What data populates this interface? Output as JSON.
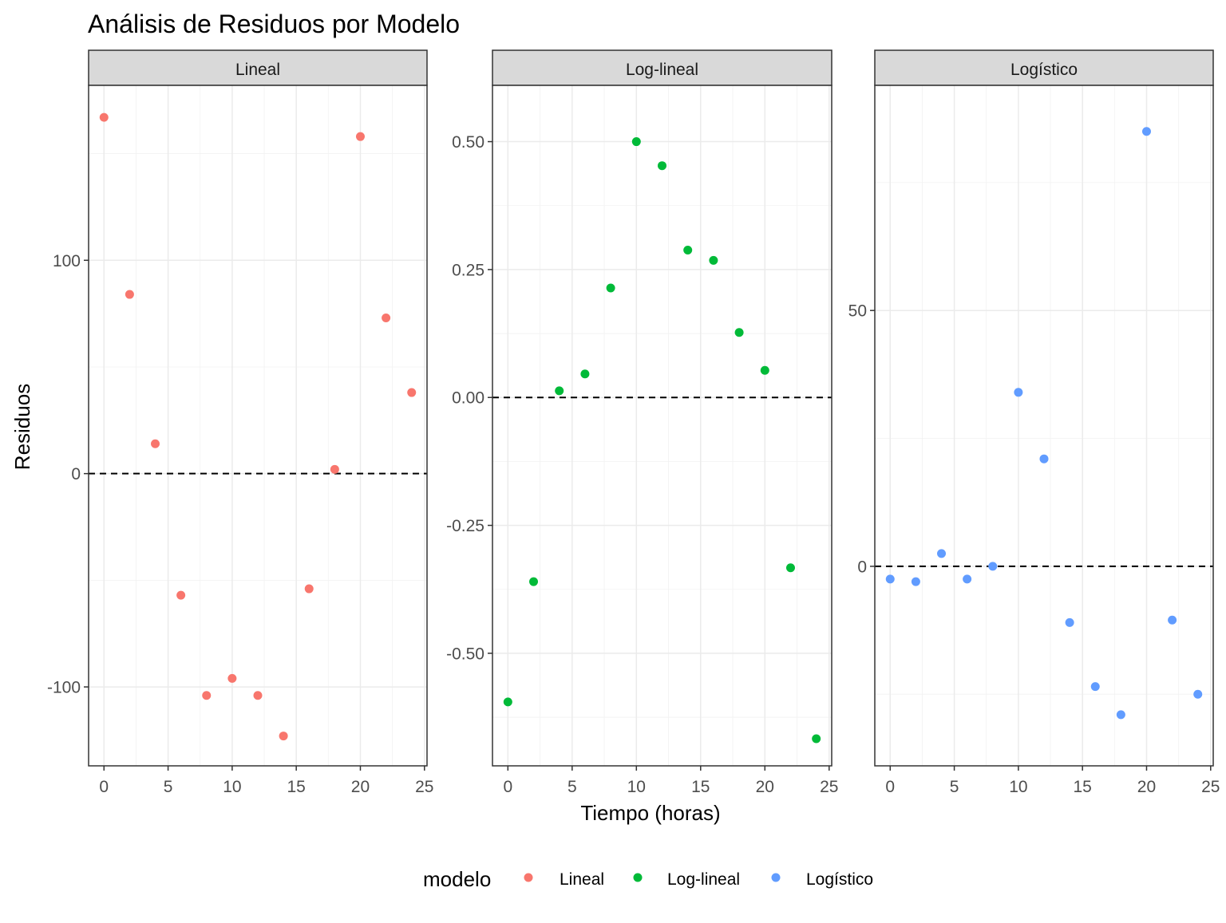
{
  "title": "Análisis de Residuos por Modelo",
  "xlabel": "Tiempo (horas)",
  "ylabel": "Residuos",
  "legend": {
    "title": "modelo",
    "position": "bottom",
    "items": [
      {
        "label": "Lineal",
        "color": "#F8766D"
      },
      {
        "label": "Log-lineal",
        "color": "#00BA38"
      },
      {
        "label": "Logístico",
        "color": "#619CFF"
      }
    ]
  },
  "chart_data": {
    "type": "scatter",
    "facet_by": "modelo",
    "grid": true,
    "reference_line": {
      "y": 0,
      "style": "dashed"
    },
    "x": [
      0,
      2,
      4,
      6,
      8,
      10,
      12,
      14,
      16,
      18,
      20,
      22,
      24
    ],
    "xlim": [
      -1.2,
      25.2
    ],
    "xticks": [
      0,
      5,
      10,
      15,
      20,
      25
    ],
    "panels": [
      {
        "label": "Lineal",
        "color": "#F8766D",
        "ylim": [
          -137,
          182
        ],
        "yticks": [
          -100,
          0,
          100
        ],
        "yminor": [
          -50,
          50,
          150
        ],
        "y": [
          167,
          84,
          14,
          -57,
          -104,
          -96,
          -104,
          -123,
          -54,
          2,
          158,
          73,
          38
        ]
      },
      {
        "label": "Log-lineal",
        "color": "#00BA38",
        "ylim": [
          -0.72,
          0.61
        ],
        "yticks": [
          -0.5,
          -0.25,
          0.0,
          0.25,
          0.5
        ],
        "yticklabels": [
          "-0.50",
          "-0.25",
          "0.00",
          "0.25",
          "0.50"
        ],
        "yminor": [
          -0.625,
          -0.375,
          -0.125,
          0.125,
          0.375
        ],
        "y": [
          -0.595,
          -0.36,
          0.013,
          0.046,
          0.214,
          0.5,
          0.453,
          0.288,
          0.268,
          0.127,
          0.053,
          -0.333,
          -0.667
        ]
      },
      {
        "label": "Logístico",
        "color": "#619CFF",
        "ylim": [
          -39,
          94
        ],
        "yticks": [
          0,
          50
        ],
        "yminor": [
          -25,
          25,
          75
        ],
        "y": [
          -2.5,
          -3,
          2.5,
          -2.5,
          0,
          34,
          21,
          -11,
          -23.5,
          -29,
          85,
          -10.5,
          -25
        ]
      }
    ]
  }
}
